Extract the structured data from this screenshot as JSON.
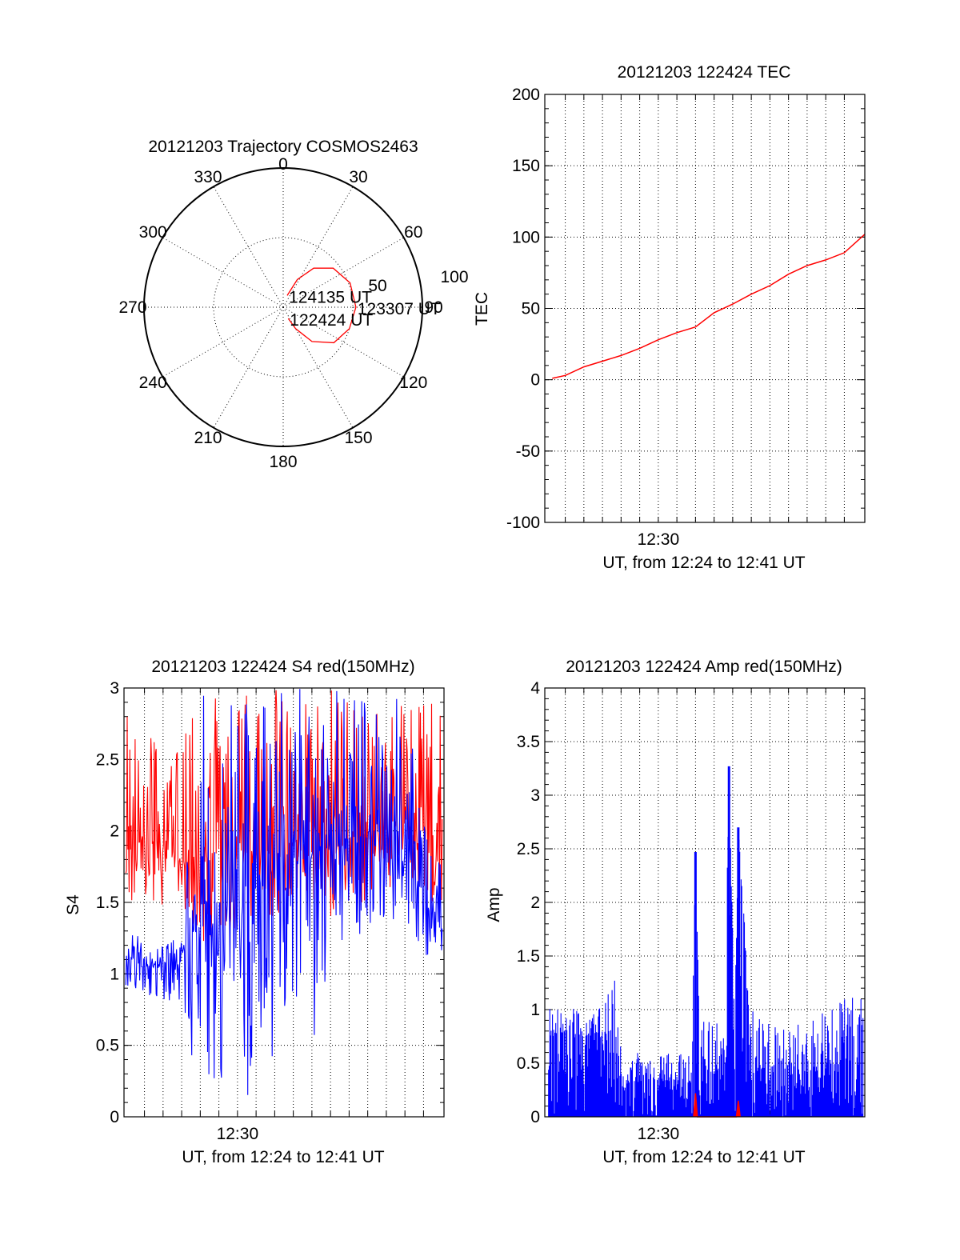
{
  "colors": {
    "red_series": "#ff0000",
    "blue_series": "#0000ff",
    "axis": "#000000"
  },
  "chart_data": [
    {
      "id": "trajectory",
      "type": "polar",
      "title": "20121203 Trajectory COSMOS2463",
      "angle_labels": [
        "0",
        "30",
        "60",
        "90",
        "120",
        "150",
        "180",
        "210",
        "240",
        "270",
        "300",
        "330"
      ],
      "radius_labels": [
        "50",
        "100"
      ],
      "r_max": 100,
      "grid": true,
      "series": [
        {
          "color": "#ff0000",
          "points": [
            {
              "az": 19,
              "el": 82
            },
            {
              "az": 27,
              "el": 70
            },
            {
              "az": 38,
              "el": 58
            },
            {
              "az": 52,
              "el": 49
            },
            {
              "az": 70,
              "el": 44
            },
            {
              "az": 90,
              "el": 43
            },
            {
              "az": 108,
              "el": 45
            },
            {
              "az": 125,
              "el": 50
            },
            {
              "az": 140,
              "el": 61
            },
            {
              "az": 150,
              "el": 74
            },
            {
              "az": 156,
              "el": 82
            }
          ]
        }
      ],
      "annotations": [
        {
          "text": "124135 UT",
          "az": 19,
          "el": 82
        },
        {
          "text": "123307 UT",
          "az": 90,
          "el": 43
        },
        {
          "text": "122424 UT",
          "az": 156,
          "el": 82
        }
      ]
    },
    {
      "id": "tec",
      "type": "line",
      "title": "20121203 122424 TEC",
      "xlabel": "UT, from 12:24 to 12:41 UT",
      "ylabel": "TEC",
      "x_unit": "minutes",
      "xlim": [
        24.4,
        41.6
      ],
      "x_tick_labels": [
        {
          "at": 30.5,
          "label": "12:30"
        }
      ],
      "x_minor_grid": [
        25.5,
        26.5,
        27.5,
        28.5,
        29.5,
        30.5,
        31.5,
        32.5,
        33.5,
        34.5,
        35.5,
        36.5,
        37.5,
        38.5,
        39.5,
        40.5
      ],
      "ylim": [
        -100,
        200
      ],
      "y_ticks": [
        -100,
        -50,
        0,
        50,
        100,
        150,
        200
      ],
      "grid": true,
      "series": [
        {
          "color": "#ff0000",
          "x": [
            24.8,
            25.5,
            26.5,
            27.5,
            28.5,
            29.5,
            30.5,
            31.5,
            32.5,
            33.5,
            34.5,
            35.5,
            36.5,
            37.5,
            38.5,
            39.5,
            40.5,
            41.6
          ],
          "y": [
            1,
            3,
            9,
            13,
            17,
            22,
            28,
            33,
            37,
            47,
            53,
            60,
            66,
            74,
            80,
            84,
            89,
            102
          ]
        }
      ]
    },
    {
      "id": "s4",
      "type": "line",
      "title": "20121203 122424 S4 red(150MHz)",
      "xlabel": "UT, from 12:24 to 12:41 UT",
      "ylabel": "S4",
      "x_unit": "minutes",
      "xlim": [
        24.4,
        41.6
      ],
      "x_tick_labels": [
        {
          "at": 30.5,
          "label": "12:30"
        }
      ],
      "x_minor_grid": [
        25.5,
        26.5,
        27.5,
        28.5,
        29.5,
        30.5,
        31.5,
        32.5,
        33.5,
        34.5,
        35.5,
        36.5,
        37.5,
        38.5,
        39.5,
        40.5
      ],
      "ylim": [
        0,
        3
      ],
      "y_ticks": [
        "0",
        "0.5",
        "1",
        "1.5",
        "2",
        "2.5",
        "3"
      ],
      "grid": true,
      "series": [
        {
          "color": "#ff0000",
          "x": [
            24.5,
            25.5,
            26.5,
            27.5,
            28.5,
            29.5,
            30.5,
            31.5,
            32.5,
            33.5,
            34.5,
            35.5,
            36.5,
            37.5,
            38.5,
            39.5,
            40.5,
            41.5
          ],
          "y": [
            1.85,
            1.95,
            1.9,
            1.8,
            1.75,
            1.9,
            1.9,
            1.85,
            1.9,
            1.95,
            2.0,
            1.85,
            1.9,
            2.0,
            2.05,
            2.1,
            2.0,
            2.0
          ],
          "min": [
            1.5,
            1.5,
            1.45,
            1.35,
            1.2,
            1.3,
            1.3,
            1.3,
            1.4,
            1.4,
            1.5,
            1.4,
            1.5,
            1.5,
            1.6,
            1.6,
            1.5,
            1.5
          ],
          "max": [
            3.0,
            3.0,
            2.9,
            2.8,
            3.0,
            3.0,
            3.0,
            3.0,
            3.0,
            3.0,
            3.0,
            3.0,
            3.0,
            3.0,
            3.0,
            3.0,
            3.0,
            3.0
          ]
        },
        {
          "color": "#0000ff",
          "x": [
            24.5,
            25.5,
            26.5,
            27.5,
            28.5,
            29.5,
            30.5,
            31.5,
            32.5,
            33.5,
            34.5,
            35.5,
            36.5,
            37.5,
            38.5,
            39.5,
            40.5,
            41.5
          ],
          "y": [
            1.05,
            1.05,
            1.08,
            1.1,
            1.5,
            1.5,
            1.5,
            1.6,
            1.7,
            1.8,
            1.8,
            1.9,
            1.95,
            2.0,
            2.0,
            2.0,
            1.5,
            1.3
          ],
          "min": [
            0.8,
            0.85,
            0.8,
            0.8,
            0.0,
            0.0,
            0.0,
            0.0,
            0.3,
            0.9,
            0.45,
            1.0,
            1.2,
            1.3,
            1.3,
            1.4,
            1.1,
            1.0
          ],
          "max": [
            1.4,
            1.2,
            1.2,
            1.3,
            3.0,
            3.0,
            3.0,
            3.0,
            3.0,
            3.0,
            3.0,
            3.0,
            3.0,
            3.0,
            3.0,
            3.0,
            2.2,
            1.8
          ]
        }
      ]
    },
    {
      "id": "amp",
      "type": "line",
      "title": "20121203 122424 Amp red(150MHz)",
      "xlabel": "UT, from 12:24 to 12:41 UT",
      "ylabel": "Amp",
      "x_unit": "minutes",
      "xlim": [
        24.4,
        41.6
      ],
      "x_tick_labels": [
        {
          "at": 30.5,
          "label": "12:30"
        }
      ],
      "x_minor_grid": [
        25.5,
        26.5,
        27.5,
        28.5,
        29.5,
        30.5,
        31.5,
        32.5,
        33.5,
        34.5,
        35.5,
        36.5,
        37.5,
        38.5,
        39.5,
        40.5
      ],
      "ylim": [
        0,
        4
      ],
      "y_ticks": [
        "0",
        "0.5",
        "1",
        "1.5",
        "2",
        "2.5",
        "3",
        "3.5",
        "4"
      ],
      "grid": true,
      "series": [
        {
          "color": "#0000ff",
          "x": [
            24.6,
            25.5,
            26.5,
            27.5,
            28.2,
            28.6,
            29.5,
            30.5,
            31.5,
            32.3,
            32.5,
            32.7,
            33.5,
            34.1,
            34.3,
            34.6,
            34.8,
            35.5,
            36.5,
            37.5,
            38.5,
            39.5,
            40.5,
            41.5
          ],
          "y": [
            0.75,
            0.8,
            0.75,
            0.8,
            0.75,
            0.3,
            0.35,
            0.35,
            0.35,
            0.35,
            2.47,
            0.4,
            0.45,
            0.5,
            3.27,
            0.5,
            2.7,
            0.45,
            0.45,
            0.45,
            0.45,
            0.5,
            0.7,
            0.9
          ],
          "max": [
            1.05,
            1.15,
            1.05,
            1.1,
            1.35,
            0.7,
            0.6,
            0.6,
            0.6,
            0.7,
            2.47,
            0.9,
            1.0,
            1.2,
            3.27,
            1.1,
            2.7,
            1.0,
            0.9,
            0.9,
            1.0,
            1.05,
            1.15,
            1.15
          ]
        },
        {
          "color": "#ff0000",
          "x": [
            32.4,
            32.5,
            32.6,
            34.7,
            34.8,
            34.9
          ],
          "y": [
            0.0,
            0.22,
            0.0,
            0.0,
            0.15,
            0.0
          ]
        }
      ]
    }
  ]
}
